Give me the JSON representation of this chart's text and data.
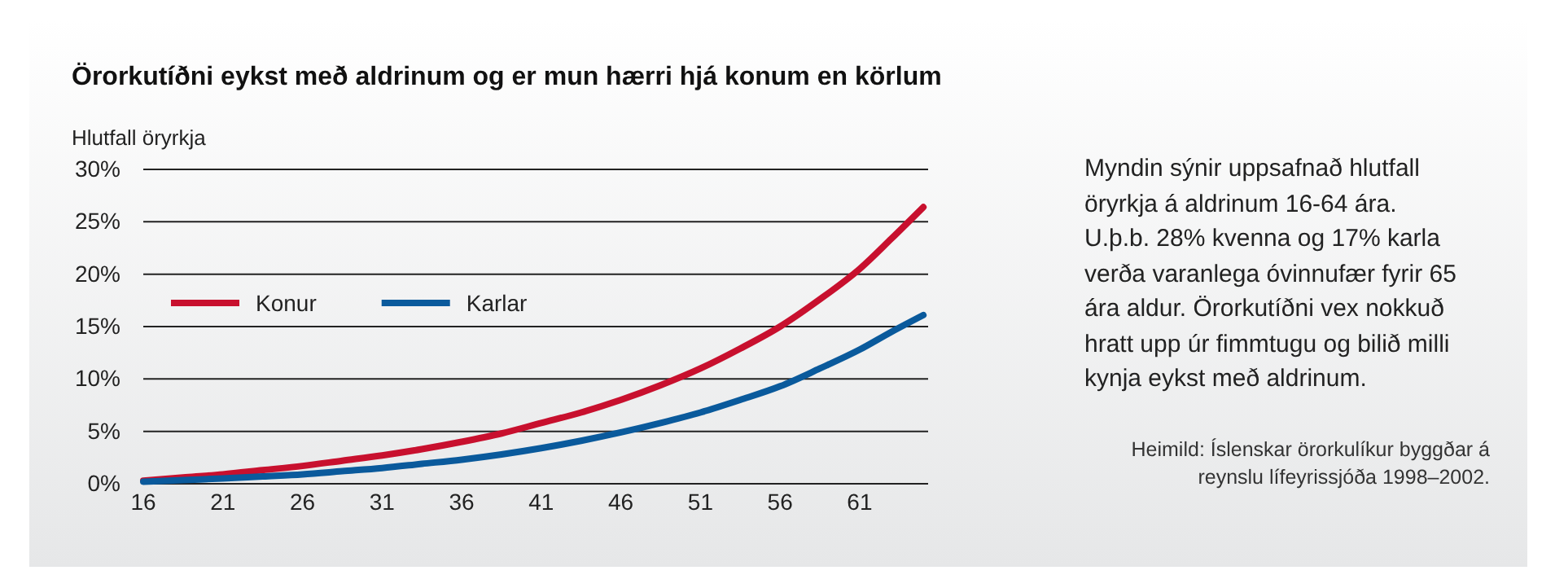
{
  "chart_data": {
    "type": "line",
    "title": "Örorkutíðni eykst með aldrinum og er mun hærri hjá konum en körlum",
    "ylabel": "Hlutfall öryrkja",
    "x": [
      16,
      18.5,
      21,
      23.5,
      26,
      28.5,
      31,
      33.5,
      36,
      38.5,
      41,
      43.5,
      46,
      48.5,
      51,
      53.5,
      56,
      58.5,
      61,
      63,
      65
    ],
    "series": [
      {
        "name": "Konur",
        "color": "#c8102e",
        "values": [
          0.3,
          0.6,
          0.9,
          1.3,
          1.7,
          2.2,
          2.7,
          3.3,
          4.0,
          4.8,
          5.8,
          6.8,
          8.0,
          9.4,
          11.0,
          12.9,
          15.0,
          17.6,
          20.5,
          23.4,
          26.4
        ]
      },
      {
        "name": "Karlar",
        "color": "#0a5a9c",
        "values": [
          0.2,
          0.35,
          0.5,
          0.7,
          0.9,
          1.2,
          1.5,
          1.9,
          2.3,
          2.8,
          3.4,
          4.1,
          4.9,
          5.8,
          6.8,
          8.0,
          9.3,
          11.0,
          12.8,
          14.5,
          16.1
        ]
      }
    ],
    "xlim": [
      16,
      65.3
    ],
    "ylim": [
      0,
      30
    ],
    "xticks": [
      16,
      21,
      26,
      31,
      36,
      41,
      46,
      51,
      56,
      61
    ],
    "yticks": [
      {
        "value": 0,
        "label": "0%"
      },
      {
        "value": 5,
        "label": "5%"
      },
      {
        "value": 10,
        "label": "10%"
      },
      {
        "value": 15,
        "label": "15%"
      },
      {
        "value": 20,
        "label": "20%"
      },
      {
        "value": 25,
        "label": "25%"
      },
      {
        "value": 30,
        "label": "30%"
      }
    ],
    "grid": "y",
    "legend": "left",
    "line_style": "solid",
    "marker": "none",
    "annotations": [
      "Myndin sýnir uppsafnað hlutfall öryrkja á aldrinum 16-64 ára. U.þ.b. 28% kvenna og 17% karla verða varanlega óvinnufær fyrir 65 ára aldur. Örorkutíðni vex nokkuð hratt upp úr fimmtugu og bilið milli kynja eykst með aldrinum.",
      "Heimild: Íslenskar örorkulíkur byggðar á reynslu lífeyrissjóða 1998–2002."
    ]
  }
}
